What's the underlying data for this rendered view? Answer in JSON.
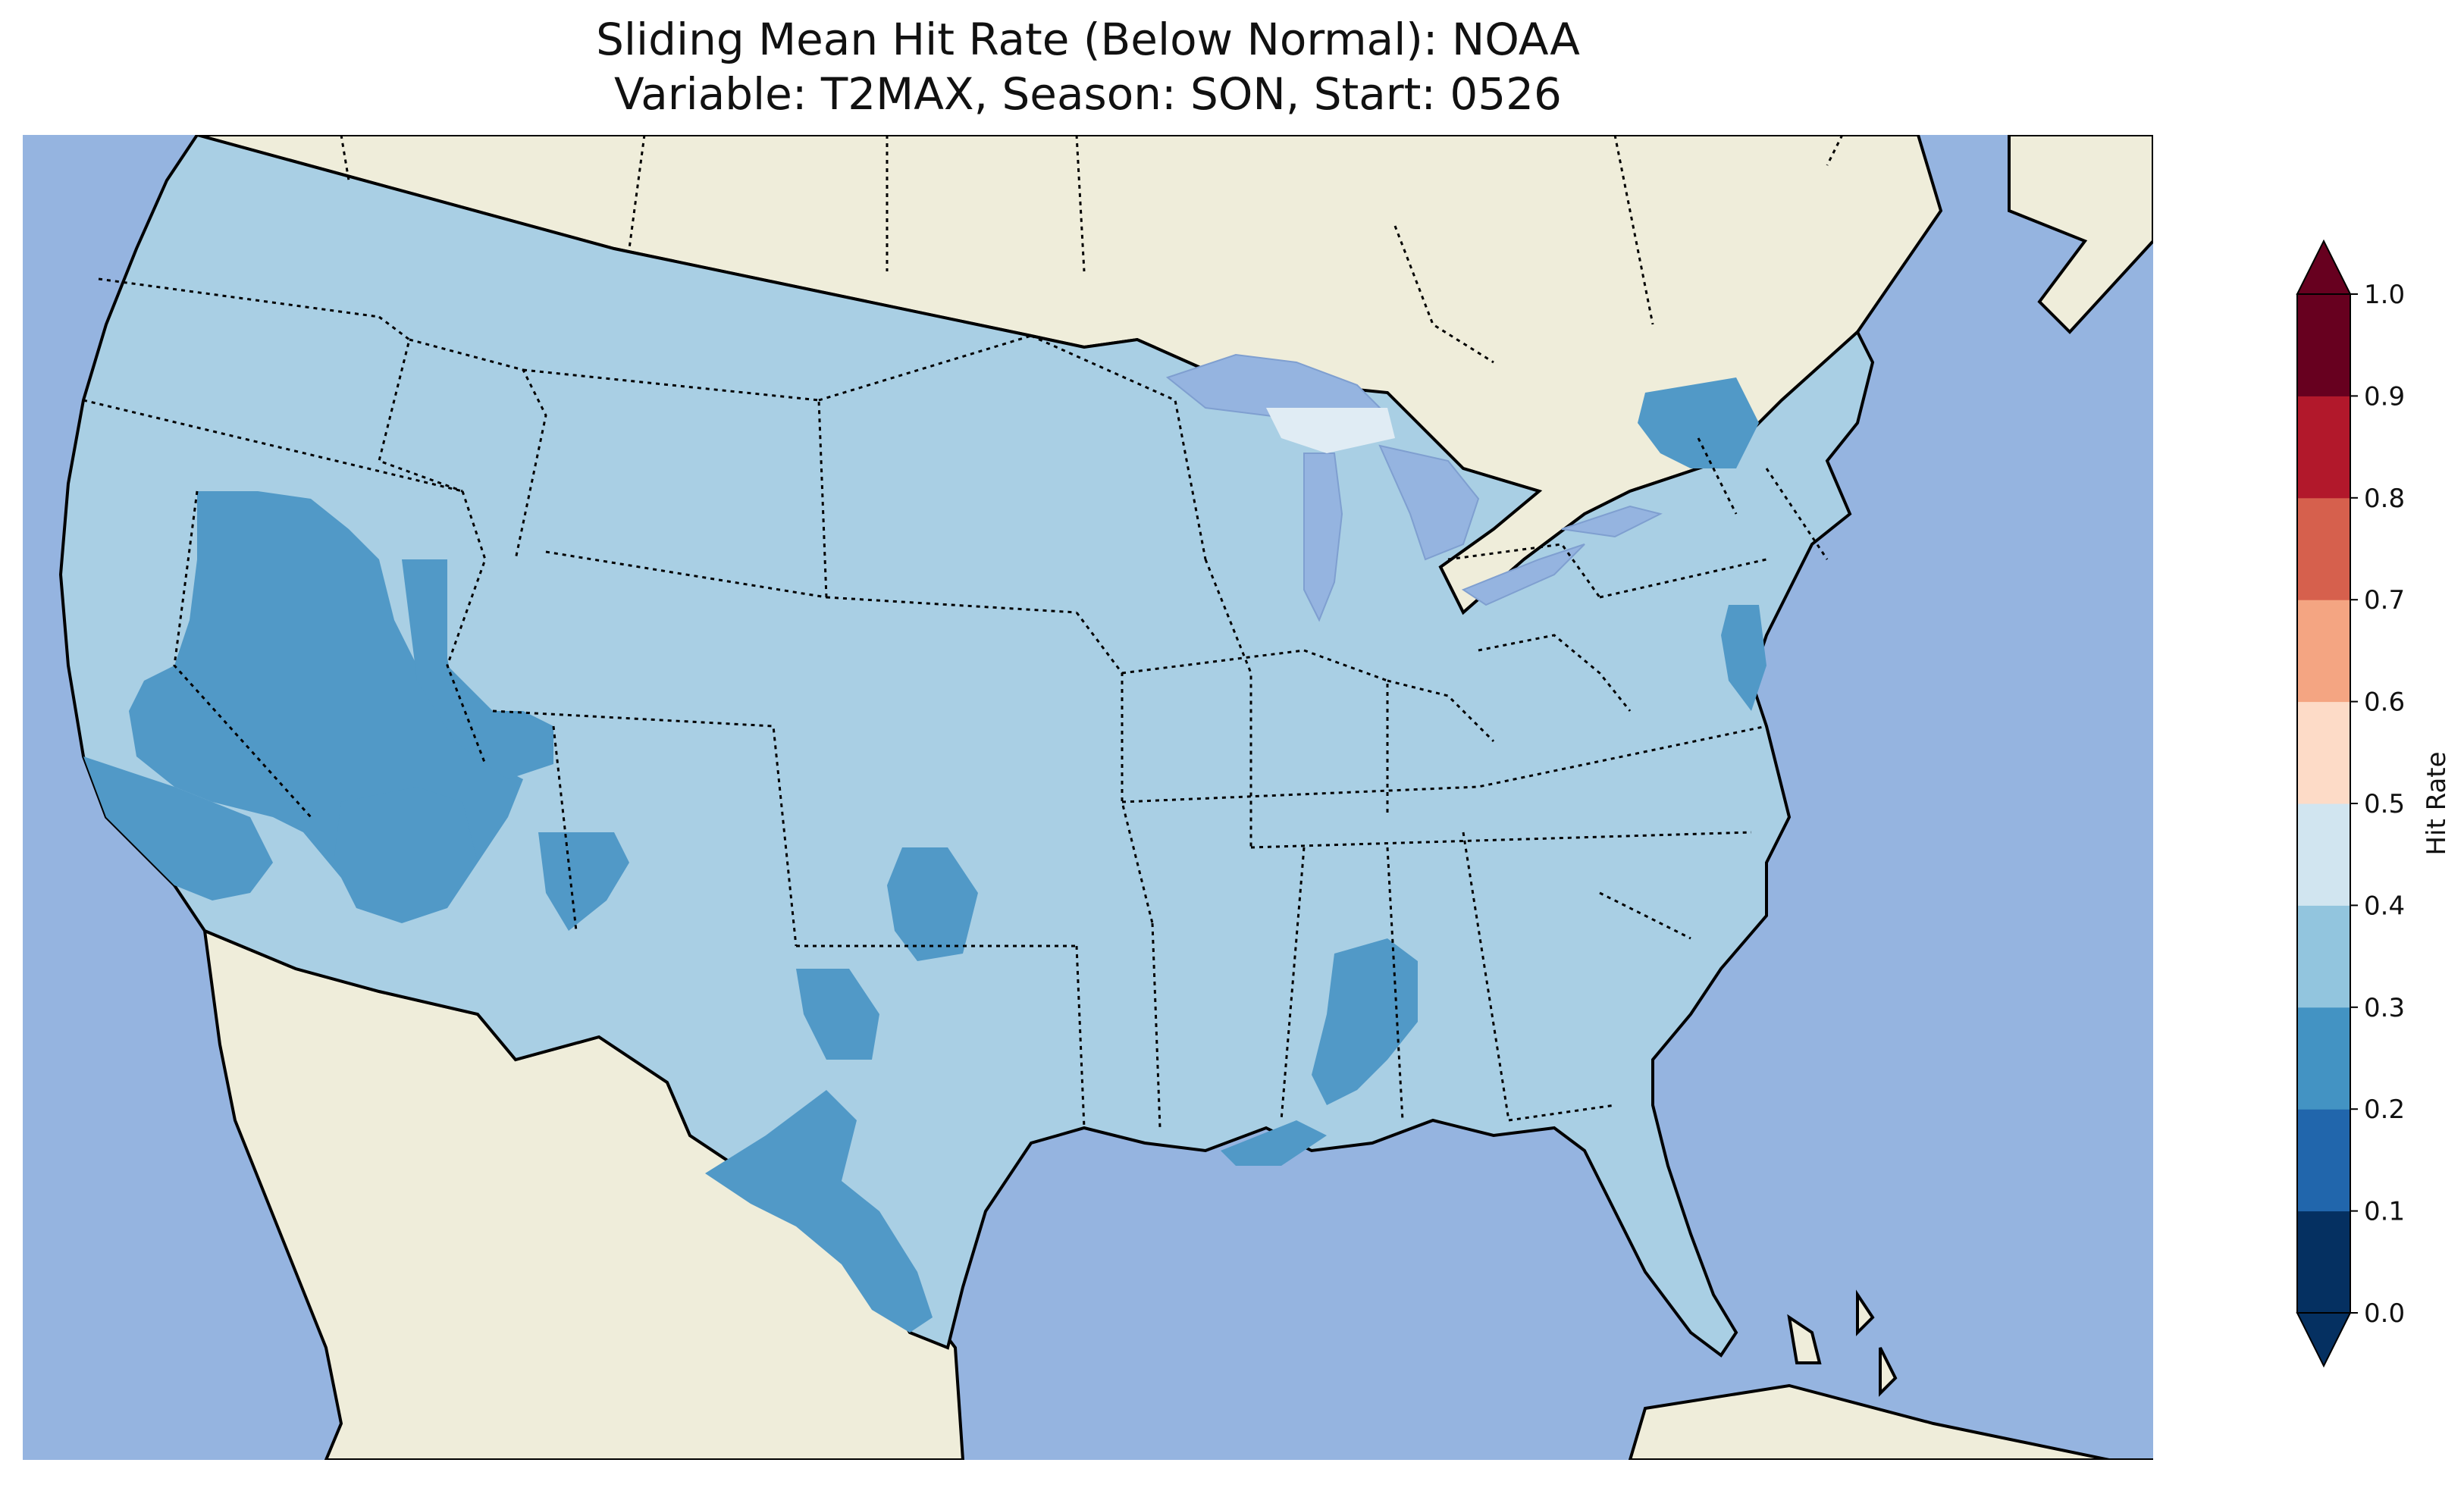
{
  "title": {
    "line1": "Sliding Mean Hit Rate (Below Normal): NOAA",
    "line2": "Variable: T2MAX, Season: SON, Start: 0526"
  },
  "map": {
    "region": "Contiguous United States",
    "colors": {
      "ocean": "#95b4e0",
      "land": "#efedda",
      "lakes": "#95b4e0",
      "value_0.3_0.4": "#a9cfe4",
      "value_0.2_0.3": "#5199c7",
      "value_0.4_0.5": "#e0ecf4"
    },
    "dominant_range": [
      0.3,
      0.4
    ],
    "low_regions": [
      {
        "name": "Nevada / western Utah",
        "range": [
          0.2,
          0.3
        ]
      },
      {
        "name": "Southern California",
        "range": [
          0.2,
          0.3
        ]
      },
      {
        "name": "Arizona / New Mexico",
        "range": [
          0.2,
          0.3
        ]
      },
      {
        "name": "Texas",
        "range": [
          0.2,
          0.3
        ]
      },
      {
        "name": "Oklahoma",
        "range": [
          0.2,
          0.3
        ]
      },
      {
        "name": "Alabama",
        "range": [
          0.2,
          0.3
        ]
      },
      {
        "name": "Upstate New York",
        "range": [
          0.2,
          0.3
        ]
      },
      {
        "name": "Delmarva",
        "range": [
          0.2,
          0.3
        ]
      }
    ],
    "high_regions": [
      {
        "name": "Upper Peninsula Michigan",
        "range": [
          0.4,
          0.5
        ]
      }
    ]
  },
  "colorbar": {
    "label": "Hit Rate",
    "ticks": [
      "0.0",
      "0.1",
      "0.2",
      "0.3",
      "0.4",
      "0.5",
      "0.6",
      "0.7",
      "0.8",
      "0.9",
      "1.0"
    ],
    "colors": [
      "#053061",
      "#2166ac",
      "#4393c3",
      "#92c5de",
      "#d1e5f0",
      "#fddbc7",
      "#f4a582",
      "#d6604d",
      "#b2182b",
      "#67001f"
    ],
    "under_color": "#053061",
    "over_color": "#67001f"
  }
}
